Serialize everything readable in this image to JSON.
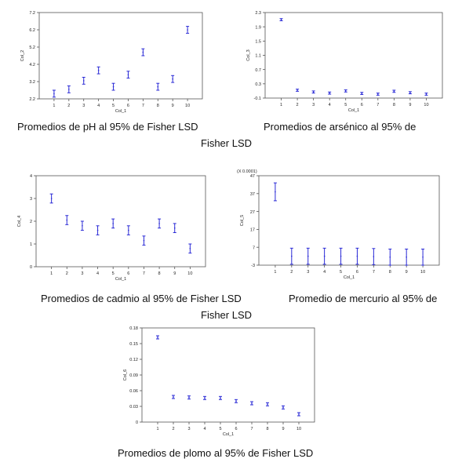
{
  "colors": {
    "error_bar": "#2a2ad6",
    "axis": "#555555",
    "text": "#222222"
  },
  "captions": {
    "ph": "Promedios de pH al 95% de Fisher LSD",
    "arsenico": "Promedios de arsénico al 95% de",
    "fisher_lsd_1": "Fisher LSD",
    "cadmio": "Promedios de cadmio al 95% de Fisher LSD",
    "mercurio": "Promedio de mercurio al 95% de",
    "fisher_lsd_2": "Fisher LSD",
    "plomo": "Promedios de plomo al 95% de Fisher LSD"
  },
  "chart_data": [
    {
      "id": "ph",
      "type": "errorbar",
      "xlabel": "Col_1",
      "ylabel": "Col_2",
      "scale_note": "",
      "ylim": [
        2.2,
        7.2
      ],
      "yticks": [
        2.2,
        3.2,
        4.2,
        5.2,
        6.2,
        7.2
      ],
      "yticklabels": [
        "2.2",
        "3.2",
        "4.2",
        "5.2",
        "6.2",
        "7.2"
      ],
      "categories": [
        "1",
        "2",
        "3",
        "4",
        "5",
        "6",
        "7",
        "8",
        "9",
        "10"
      ],
      "means": [
        2.5,
        2.75,
        3.25,
        3.85,
        2.9,
        3.6,
        4.9,
        2.9,
        3.35,
        6.2
      ],
      "half_width": [
        0.2,
        0.2,
        0.2,
        0.2,
        0.2,
        0.2,
        0.2,
        0.2,
        0.2,
        0.2
      ]
    },
    {
      "id": "arsenico",
      "type": "errorbar",
      "xlabel": "Col_1",
      "ylabel": "Col_3",
      "scale_note": "",
      "ylim": [
        -0.1,
        2.3
      ],
      "yticks": [
        -0.1,
        0.3,
        0.7,
        1.1,
        1.5,
        1.9,
        2.3
      ],
      "yticklabels": [
        "-0.1",
        "0.3",
        "0.7",
        "1.1",
        "1.5",
        "1.9",
        "2.3"
      ],
      "categories": [
        "1",
        "2",
        "3",
        "4",
        "5",
        "6",
        "7",
        "8",
        "9",
        "10"
      ],
      "means": [
        2.1,
        0.12,
        0.07,
        0.04,
        0.1,
        0.03,
        0.01,
        0.09,
        0.05,
        0.01
      ],
      "half_width": [
        0.03,
        0.03,
        0.03,
        0.03,
        0.03,
        0.03,
        0.03,
        0.03,
        0.03,
        0.03
      ]
    },
    {
      "id": "cadmio",
      "type": "errorbar",
      "xlabel": "Col_1",
      "ylabel": "Col_4",
      "scale_note": "",
      "ylim": [
        0,
        4
      ],
      "yticks": [
        0,
        1,
        2,
        3,
        4
      ],
      "yticklabels": [
        "0",
        "1",
        "2",
        "3",
        "4"
      ],
      "categories": [
        "1",
        "2",
        "3",
        "4",
        "5",
        "6",
        "7",
        "8",
        "9",
        "10"
      ],
      "means": [
        3.0,
        2.05,
        1.8,
        1.6,
        1.9,
        1.6,
        1.15,
        1.9,
        1.7,
        0.8
      ],
      "half_width": [
        0.2,
        0.2,
        0.2,
        0.2,
        0.2,
        0.2,
        0.2,
        0.2,
        0.2,
        0.2
      ]
    },
    {
      "id": "mercurio",
      "type": "errorbar",
      "xlabel": "Col_1",
      "ylabel": "Col_5",
      "scale_note": "(X 0.0001)",
      "ylim": [
        -3,
        47
      ],
      "yticks": [
        -3,
        7,
        17,
        27,
        37,
        47
      ],
      "yticklabels": [
        "-3",
        "7",
        "17",
        "27",
        "37",
        "47"
      ],
      "categories": [
        "1",
        "2",
        "3",
        "4",
        "5",
        "6",
        "7",
        "8",
        "9",
        "10"
      ],
      "means": [
        38,
        2,
        2,
        2,
        2,
        2,
        1.8,
        1.5,
        1.5,
        1.5
      ],
      "half_width": [
        5,
        4.5,
        4.5,
        4.5,
        4.5,
        4.5,
        4.5,
        4.5,
        4.5,
        4.5
      ]
    },
    {
      "id": "plomo",
      "type": "errorbar",
      "xlabel": "Col_1",
      "ylabel": "Col_6",
      "scale_note": "",
      "ylim": [
        0,
        0.18
      ],
      "yticks": [
        0,
        0.03,
        0.06,
        0.09,
        0.12,
        0.15,
        0.18
      ],
      "yticklabels": [
        "0",
        "0.03",
        "0.06",
        "0.09",
        "0.12",
        "0.15",
        "0.18"
      ],
      "categories": [
        "1",
        "2",
        "3",
        "4",
        "5",
        "6",
        "7",
        "8",
        "9",
        "10"
      ],
      "means": [
        0.162,
        0.048,
        0.047,
        0.046,
        0.046,
        0.04,
        0.036,
        0.034,
        0.028,
        0.015
      ],
      "half_width": [
        0.003,
        0.003,
        0.003,
        0.003,
        0.003,
        0.003,
        0.003,
        0.003,
        0.003,
        0.003
      ]
    }
  ]
}
